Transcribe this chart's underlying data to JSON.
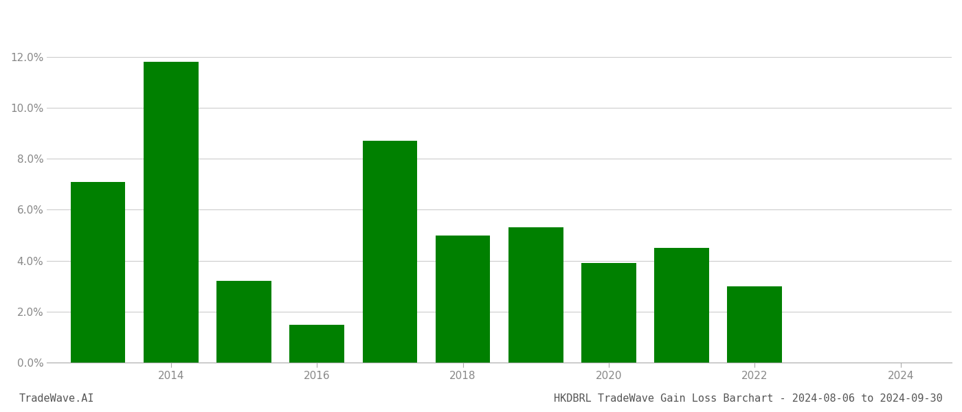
{
  "years": [
    2013,
    2014,
    2015,
    2016,
    2017,
    2018,
    2019,
    2020,
    2021,
    2022
  ],
  "values": [
    0.071,
    0.118,
    0.032,
    0.015,
    0.087,
    0.05,
    0.053,
    0.039,
    0.045,
    0.03
  ],
  "bar_color": "#008000",
  "title": "HKDBRL TradeWave Gain Loss Barchart - 2024-08-06 to 2024-09-30",
  "watermark": "TradeWave.AI",
  "xlim": [
    2012.3,
    2024.7
  ],
  "ylim": [
    0,
    0.135
  ],
  "yticks": [
    0.0,
    0.02,
    0.04,
    0.06,
    0.08,
    0.1,
    0.12
  ],
  "xticks": [
    2014,
    2016,
    2018,
    2020,
    2022,
    2024
  ],
  "bar_width": 0.75,
  "background_color": "#ffffff",
  "grid_color": "#cccccc",
  "title_fontsize": 11,
  "tick_fontsize": 11,
  "watermark_fontsize": 11
}
